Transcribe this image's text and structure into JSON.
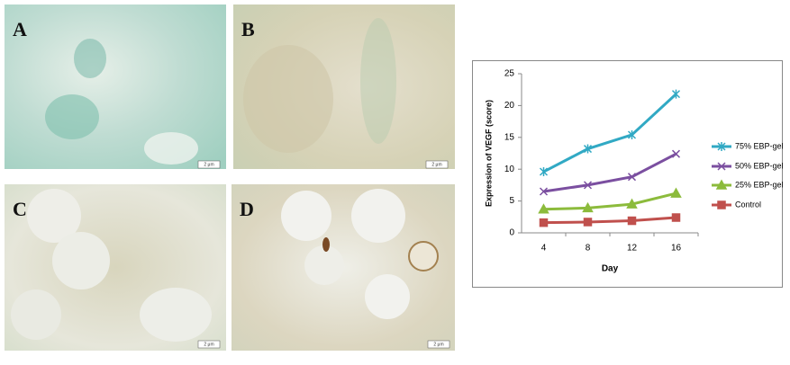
{
  "panels": [
    {
      "label": "A",
      "scale": "2 μm"
    },
    {
      "label": "B",
      "scale": "2 μm"
    },
    {
      "label": "C",
      "scale": "2 μm"
    },
    {
      "label": "D",
      "scale": "2 μm"
    }
  ],
  "chart_data": {
    "type": "line",
    "x_label": "Day",
    "y_label": "Expression of VEGF (score)",
    "categories": [
      "4",
      "8",
      "12",
      "16"
    ],
    "ylim": [
      0,
      25
    ],
    "yticks": [
      0,
      5,
      10,
      15,
      20,
      25
    ],
    "grid": false,
    "legend": "right",
    "series": [
      {
        "name": "75% EBP-gel",
        "color": "#31a9c4",
        "marker": "star",
        "values": [
          9.6,
          13.2,
          15.4,
          21.8
        ]
      },
      {
        "name": "50% EBP-gel",
        "color": "#7b4fa0",
        "marker": "x",
        "values": [
          6.5,
          7.5,
          8.8,
          12.4
        ]
      },
      {
        "name": "25% EBP-gel",
        "color": "#8cbb3c",
        "marker": "triangle",
        "values": [
          3.7,
          3.9,
          4.5,
          6.2
        ]
      },
      {
        "name": "Control",
        "color": "#c0504d",
        "marker": "square",
        "values": [
          1.6,
          1.7,
          1.9,
          2.4
        ]
      }
    ]
  }
}
